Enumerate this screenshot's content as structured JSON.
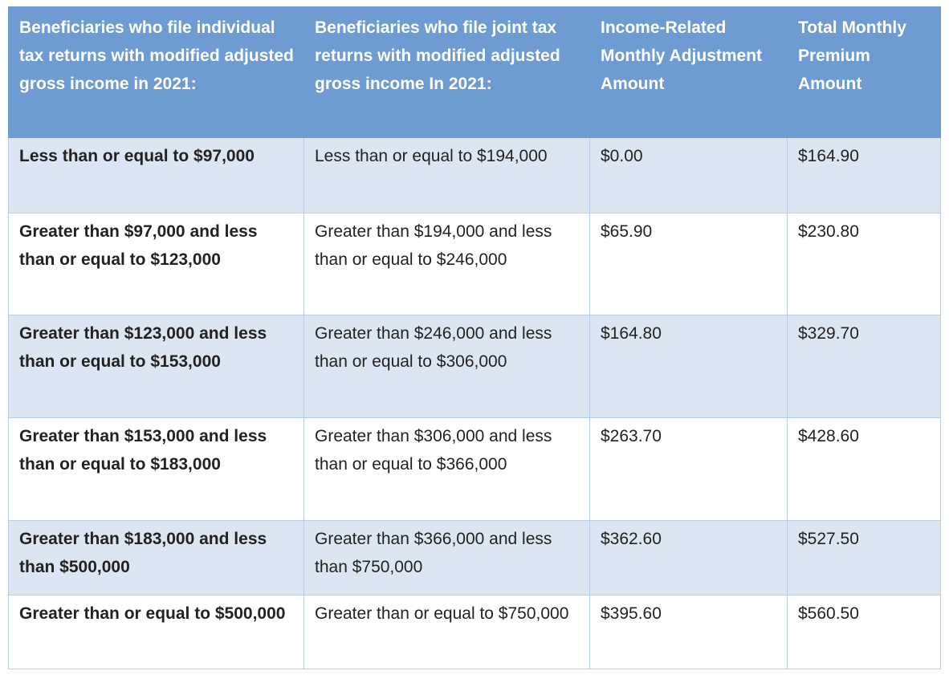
{
  "table": {
    "headers": [
      "Beneficiaries who file individual tax returns with modified adjusted gross income in 2021:",
      "Beneficiaries who file joint tax returns with modified adjusted gross income In 2021:",
      "Income-Related Monthly Adjustment Amount",
      "Total Monthly Premium Amount"
    ],
    "rows": [
      [
        "Less than or equal to $97,000",
        "Less than or equal to $194,000",
        "$0.00",
        "$164.90"
      ],
      [
        "Greater than $97,000 and less than or equal to $123,000",
        "Greater than $194,000 and less than or equal to $246,000",
        "$65.90",
        "$230.80"
      ],
      [
        "Greater than $123,000 and less than or equal to $153,000",
        "Greater than $246,000 and less than or equal to $306,000",
        "$164.80",
        "$329.70"
      ],
      [
        "Greater than $153,000 and less than or equal to $183,000",
        "Greater than $306,000 and less than or equal to $366,000",
        "$263.70",
        "$428.60"
      ],
      [
        "Greater than $183,000 and less than $500,000",
        "Greater than $366,000 and less than $750,000",
        "$362.60",
        "$527.50"
      ],
      [
        "Greater than or equal to $500,000",
        "Greater than or equal to $750,000",
        "$395.60",
        "$560.50"
      ]
    ]
  }
}
